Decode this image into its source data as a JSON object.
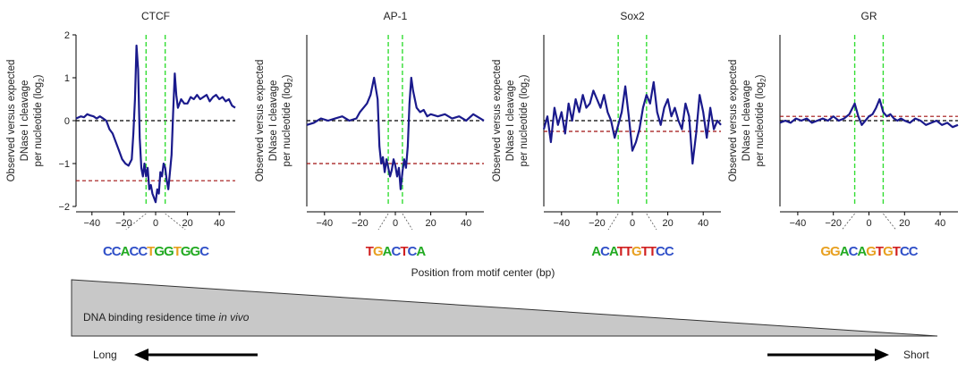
{
  "chart_data": [
    {
      "type": "line",
      "title": "CTCF",
      "xlabel": "Position from motif center (bp)",
      "ylabel_lines": [
        "Observed versus expected",
        "DNase I cleavage",
        "per nucleotide (log",
        "2",
        ")"
      ],
      "xlim": [
        -50,
        50
      ],
      "ylim": [
        -2,
        2
      ],
      "xticks": [
        -40,
        -20,
        0,
        20,
        40
      ],
      "yticks": [
        -2,
        -1,
        0,
        1,
        2
      ],
      "show_yticklabels": true,
      "motif_bounds": [
        -6,
        6
      ],
      "reference_lines": [
        {
          "y": 0,
          "color": "#000000"
        },
        {
          "y": -1.4,
          "color": "#a01010"
        }
      ],
      "series": [
        {
          "name": "cleavage",
          "color": "#1a1a8c",
          "x": [
            -50,
            -47,
            -45,
            -43,
            -41,
            -39,
            -37,
            -35,
            -33,
            -31,
            -29,
            -27,
            -25,
            -23,
            -21,
            -19,
            -17,
            -15,
            -14,
            -13,
            -12,
            -11,
            -10,
            -9,
            -8,
            -7,
            -6,
            -5,
            -4,
            -3,
            -2,
            -1,
            0,
            1,
            2,
            3,
            4,
            5,
            6,
            7,
            8,
            9,
            10,
            11,
            12,
            13,
            14,
            16,
            18,
            20,
            22,
            24,
            26,
            28,
            30,
            32,
            34,
            36,
            38,
            40,
            42,
            44,
            46,
            48,
            50
          ],
          "y": [
            0.05,
            0.1,
            0.08,
            0.15,
            0.12,
            0.1,
            0.05,
            0.1,
            0.05,
            0.0,
            -0.2,
            -0.3,
            -0.5,
            -0.7,
            -0.9,
            -1.0,
            -1.05,
            -0.9,
            -0.3,
            0.5,
            1.75,
            1.2,
            -0.4,
            -1.1,
            -1.3,
            -1.0,
            -1.3,
            -1.1,
            -1.6,
            -1.5,
            -1.7,
            -1.8,
            -1.9,
            -1.6,
            -1.7,
            -1.2,
            -1.3,
            -1.0,
            -1.1,
            -1.4,
            -1.6,
            -1.2,
            -0.8,
            0.2,
            1.1,
            0.6,
            0.3,
            0.5,
            0.4,
            0.4,
            0.55,
            0.5,
            0.6,
            0.5,
            0.55,
            0.6,
            0.45,
            0.55,
            0.6,
            0.5,
            0.55,
            0.45,
            0.5,
            0.35,
            0.3
          ]
        }
      ],
      "motif_logo": [
        {
          "text": "CCACCTGGTGGC",
          "colors": [
            "#3050c8",
            "#3050c8",
            "#22aa22",
            "#3050c8",
            "#3050c8",
            "#e8a020",
            "#22aa22",
            "#22aa22",
            "#e8a020",
            "#22aa22",
            "#22aa22",
            "#3050c8"
          ]
        }
      ]
    },
    {
      "type": "line",
      "title": "AP-1",
      "xlabel": "Position from motif center (bp)",
      "ylabel_lines": [
        "Observed versus expected",
        "DNase I cleavage",
        "per nucleotide (log",
        "2",
        ")"
      ],
      "xlim": [
        -50,
        50
      ],
      "ylim": [
        -2,
        2
      ],
      "xticks": [
        -40,
        -20,
        0,
        20,
        40
      ],
      "yticks": [],
      "show_yticklabels": false,
      "motif_bounds": [
        -4,
        4
      ],
      "reference_lines": [
        {
          "y": 0,
          "color": "#000000"
        },
        {
          "y": -1.0,
          "color": "#a01010"
        }
      ],
      "series": [
        {
          "name": "cleavage",
          "color": "#1a1a8c",
          "x": [
            -50,
            -46,
            -42,
            -38,
            -34,
            -30,
            -26,
            -22,
            -20,
            -18,
            -16,
            -14,
            -12,
            -10,
            -9,
            -8,
            -7,
            -6,
            -5,
            -4,
            -3,
            -2,
            -1,
            0,
            1,
            2,
            3,
            4,
            5,
            6,
            7,
            8,
            9,
            10,
            12,
            14,
            16,
            18,
            20,
            24,
            28,
            32,
            36,
            40,
            44,
            48,
            50
          ],
          "y": [
            -0.1,
            -0.05,
            0.05,
            0.0,
            0.05,
            0.1,
            0.0,
            0.05,
            0.2,
            0.3,
            0.4,
            0.6,
            1.0,
            0.5,
            -0.6,
            -1.0,
            -0.85,
            -1.2,
            -0.9,
            -1.1,
            -1.3,
            -1.15,
            -0.9,
            -1.05,
            -1.3,
            -1.1,
            -1.6,
            -1.2,
            -0.9,
            -1.1,
            -0.6,
            0.4,
            1.0,
            0.7,
            0.3,
            0.2,
            0.25,
            0.1,
            0.15,
            0.1,
            0.15,
            0.05,
            0.1,
            0.0,
            0.15,
            0.05,
            0.0
          ]
        }
      ],
      "motif_logo": [
        {
          "text": "TGACTCA",
          "colors": [
            "#d02020",
            "#e8a020",
            "#22aa22",
            "#3050c8",
            "#d02020",
            "#3050c8",
            "#22aa22"
          ]
        }
      ]
    },
    {
      "type": "line",
      "title": "Sox2",
      "xlabel": "Position from motif center (bp)",
      "ylabel_lines": [
        "Observed versus expected",
        "DNase I cleavage",
        "per nucleotide (log",
        "2",
        ")"
      ],
      "xlim": [
        -50,
        50
      ],
      "ylim": [
        -2,
        2
      ],
      "xticks": [
        -40,
        -20,
        0,
        20,
        40
      ],
      "yticks": [],
      "show_yticklabels": false,
      "motif_bounds": [
        -8,
        8
      ],
      "reference_lines": [
        {
          "y": 0,
          "color": "#000000"
        },
        {
          "y": -0.25,
          "color": "#a01010"
        }
      ],
      "series": [
        {
          "name": "cleavage",
          "color": "#1a1a8c",
          "x": [
            -50,
            -48,
            -46,
            -44,
            -42,
            -40,
            -38,
            -36,
            -34,
            -32,
            -30,
            -28,
            -26,
            -24,
            -22,
            -20,
            -18,
            -16,
            -14,
            -12,
            -10,
            -8,
            -6,
            -4,
            -2,
            0,
            2,
            4,
            6,
            8,
            10,
            12,
            14,
            16,
            18,
            20,
            22,
            24,
            26,
            28,
            30,
            32,
            34,
            36,
            38,
            40,
            42,
            44,
            46,
            48,
            50
          ],
          "y": [
            -0.2,
            0.1,
            -0.5,
            0.3,
            -0.1,
            0.2,
            -0.3,
            0.4,
            0.0,
            0.5,
            0.2,
            0.6,
            0.3,
            0.4,
            0.7,
            0.5,
            0.3,
            0.6,
            0.2,
            0.0,
            -0.4,
            -0.1,
            0.2,
            0.8,
            0.1,
            -0.7,
            -0.5,
            -0.2,
            0.3,
            0.6,
            0.4,
            0.9,
            0.2,
            -0.1,
            0.3,
            0.5,
            0.1,
            0.3,
            0.0,
            -0.2,
            0.4,
            0.1,
            -1.0,
            -0.3,
            0.6,
            0.2,
            -0.4,
            0.3,
            -0.2,
            0.0,
            -0.1
          ]
        }
      ],
      "motif_logo": [
        {
          "text": "ACATTGTTCC",
          "colors": [
            "#22aa22",
            "#3050c8",
            "#22aa22",
            "#d02020",
            "#d02020",
            "#e8a020",
            "#d02020",
            "#d02020",
            "#3050c8",
            "#3050c8"
          ]
        }
      ]
    },
    {
      "type": "line",
      "title": "GR",
      "xlabel": "Position from motif center (bp)",
      "ylabel_lines": [
        "Observed versus expected",
        "DNase I cleavage",
        "per nucleotide (log",
        "2",
        ")"
      ],
      "xlim": [
        -50,
        50
      ],
      "ylim": [
        -2,
        2
      ],
      "xticks": [
        -40,
        -20,
        0,
        20,
        40
      ],
      "yticks": [],
      "show_yticklabels": false,
      "motif_bounds": [
        -8,
        8
      ],
      "reference_lines": [
        {
          "y": 0,
          "color": "#000000"
        },
        {
          "y": 0.1,
          "color": "#a01010"
        }
      ],
      "series": [
        {
          "name": "cleavage",
          "color": "#1a1a8c",
          "x": [
            -50,
            -47,
            -44,
            -41,
            -38,
            -35,
            -32,
            -29,
            -26,
            -23,
            -20,
            -17,
            -14,
            -11,
            -8,
            -6,
            -4,
            -2,
            0,
            2,
            4,
            6,
            8,
            10,
            12,
            14,
            16,
            18,
            20,
            23,
            26,
            29,
            32,
            35,
            38,
            41,
            44,
            47,
            50
          ],
          "y": [
            -0.05,
            0.0,
            -0.05,
            0.05,
            0.0,
            0.05,
            -0.05,
            0.0,
            0.05,
            0.0,
            0.1,
            0.0,
            0.05,
            0.15,
            0.4,
            0.1,
            -0.1,
            0.0,
            0.1,
            0.15,
            0.3,
            0.5,
            0.2,
            0.1,
            0.15,
            0.05,
            0.0,
            0.05,
            0.0,
            -0.05,
            0.05,
            0.0,
            -0.1,
            -0.05,
            0.0,
            -0.1,
            -0.05,
            -0.15,
            -0.1
          ]
        }
      ],
      "motif_logo": [
        {
          "text": "GGACAGTGTCC",
          "colors": [
            "#e8a020",
            "#e8a020",
            "#22aa22",
            "#3050c8",
            "#22aa22",
            "#e8a020",
            "#d02020",
            "#e8a020",
            "#d02020",
            "#3050c8",
            "#3050c8"
          ]
        }
      ]
    }
  ],
  "shared_xlabel": "Position from motif center (bp)",
  "residence": {
    "label_plain": "DNA binding residence time ",
    "label_italic": "in vivo",
    "long_label": "Long",
    "short_label": "Short",
    "triangle_fill": "#c8c8c8"
  }
}
